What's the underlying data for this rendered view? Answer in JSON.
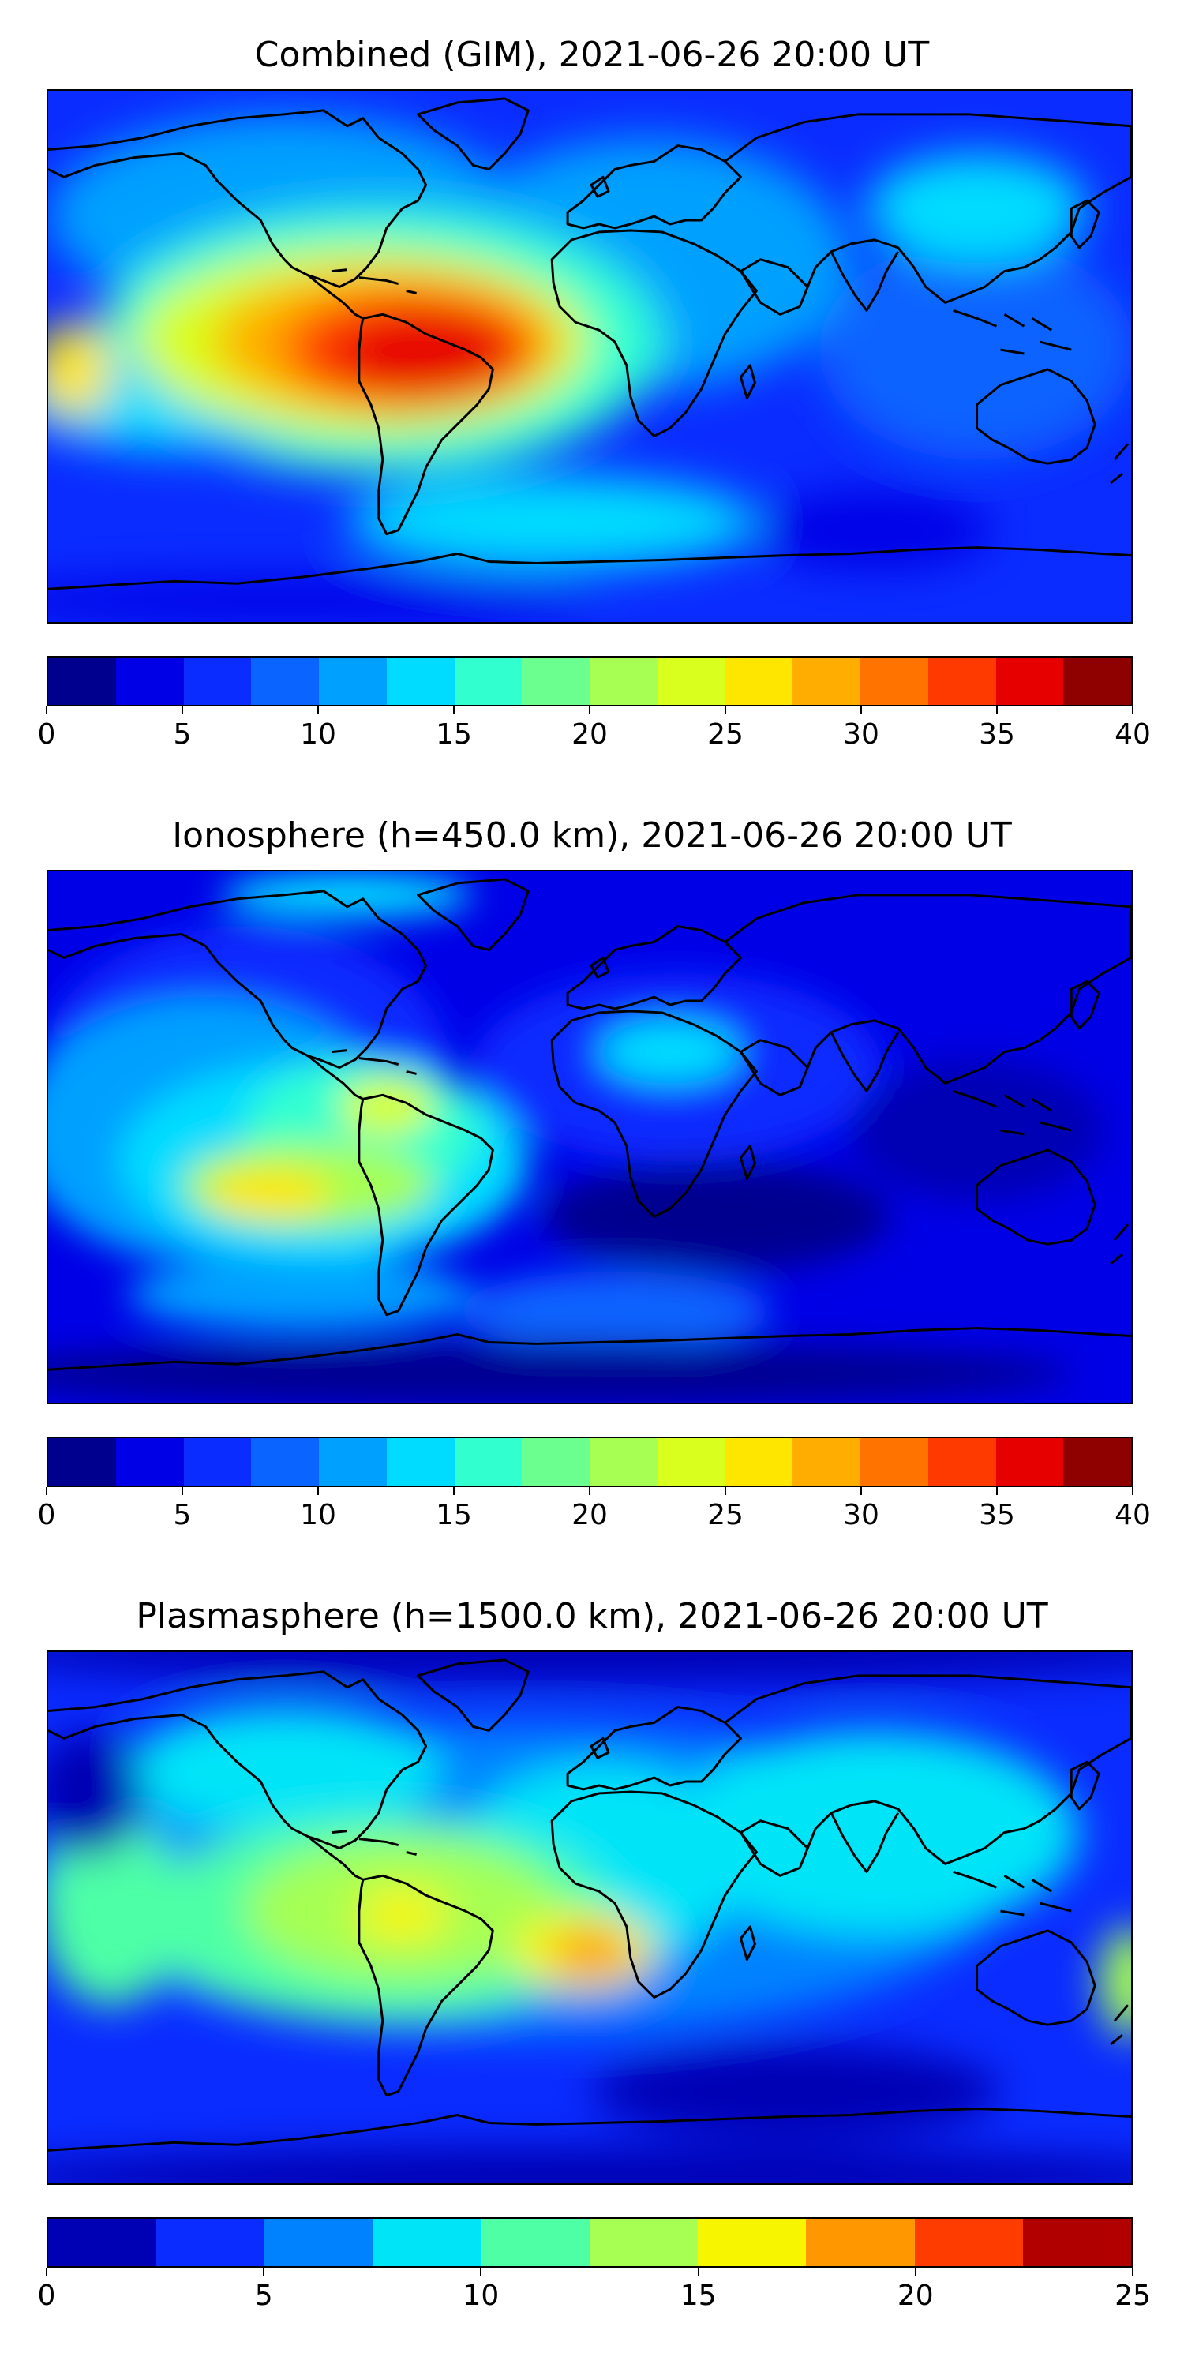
{
  "panels": [
    {
      "title": "Combined (GIM), 2021-06-26 20:00 UT",
      "colorbar": {
        "min": 0,
        "max": 40,
        "colors": [
          "#00008f",
          "#0000e6",
          "#0a2cff",
          "#0a64ff",
          "#00a0ff",
          "#00dcff",
          "#32ffd0",
          "#6aff8e",
          "#a6ff52",
          "#d9ff1e",
          "#ffe600",
          "#ffae00",
          "#ff7400",
          "#ff3a00",
          "#e60000",
          "#8f0000"
        ],
        "ticks": [
          "0",
          "5",
          "10",
          "15",
          "20",
          "25",
          "30",
          "35",
          "40"
        ]
      }
    },
    {
      "title": "Ionosphere  (h=450.0 km), 2021-06-26 20:00 UT",
      "colorbar": {
        "min": 0,
        "max": 40,
        "colors": [
          "#00008f",
          "#0000e6",
          "#0a2cff",
          "#0a64ff",
          "#00a0ff",
          "#00dcff",
          "#32ffd0",
          "#6aff8e",
          "#a6ff52",
          "#d9ff1e",
          "#ffe600",
          "#ffae00",
          "#ff7400",
          "#ff3a00",
          "#e60000",
          "#8f0000"
        ],
        "ticks": [
          "0",
          "5",
          "10",
          "15",
          "20",
          "25",
          "30",
          "35",
          "40"
        ]
      }
    },
    {
      "title": "Plasmasphere (h=1500.0 km), 2021-06-26 20:00 UT",
      "colorbar": {
        "min": 0,
        "max": 25,
        "colors": [
          "#0000b4",
          "#0a2cff",
          "#0082ff",
          "#00e4f8",
          "#4effa6",
          "#a6ff52",
          "#f8f500",
          "#ff9800",
          "#ff3c00",
          "#b00000"
        ],
        "ticks": [
          "0",
          "5",
          "10",
          "15",
          "20",
          "25"
        ]
      }
    }
  ]
}
